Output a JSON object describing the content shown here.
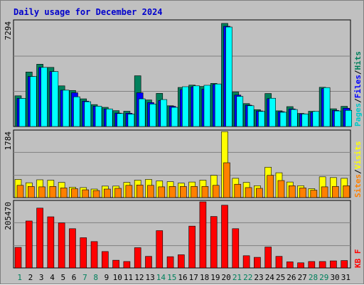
{
  "chart_data": {
    "type": "bar",
    "title": "Daily usage for December 2024",
    "categories": [
      "1",
      "2",
      "3",
      "4",
      "5",
      "6",
      "7",
      "8",
      "9",
      "10",
      "11",
      "12",
      "13",
      "14",
      "15",
      "16",
      "17",
      "18",
      "19",
      "20",
      "21",
      "22",
      "23",
      "24",
      "25",
      "26",
      "27",
      "28",
      "29",
      "30",
      "31"
    ],
    "weekend_days": [
      "1",
      "7",
      "8",
      "14",
      "15",
      "21",
      "22",
      "28",
      "29"
    ],
    "colors": {
      "hits": "#00805c",
      "files": "#0000ff",
      "pages": "#00ffff",
      "visits": "#ffff00",
      "sites": "#ff8000",
      "kbf": "#ff0000",
      "weekday": "#000000",
      "weekend": "#00805c",
      "title": "#0000cc",
      "grid": "#808080",
      "panel_bg": "#c0c0c0"
    },
    "panels": [
      {
        "ymax_label": "7294",
        "ymax": 7294,
        "legend": [
          {
            "text": "Pages",
            "color": "#00c8c8"
          },
          {
            "text": "/",
            "color": "#000000"
          },
          {
            "text": "Files",
            "color": "#0000ff"
          },
          {
            "text": "/",
            "color": "#000000"
          },
          {
            "text": "Hits",
            "color": "#00805c"
          }
        ],
        "series": [
          {
            "name": "Hits",
            "color": "#00805c",
            "values": [
              2130,
              3780,
              4320,
              4100,
              2820,
              2500,
              1920,
              1520,
              1330,
              1100,
              1060,
              3520,
              1840,
              2300,
              1440,
              2710,
              2870,
              2780,
              2990,
              7150,
              2390,
              1590,
              1170,
              2290,
              1090,
              1380,
              910,
              1060,
              2720,
              1230,
              1400
            ]
          },
          {
            "name": "Files",
            "color": "#0000ff",
            "values": [
              1950,
              3470,
              4100,
              3810,
              2520,
              2340,
              1760,
              1410,
              1220,
              930,
              920,
              2340,
              1660,
              1800,
              1400,
              2560,
              2750,
              2590,
              2920,
              6950,
              2180,
              1480,
              1080,
              1930,
              1030,
              1220,
              880,
              980,
              2630,
              1120,
              1270
            ]
          },
          {
            "name": "Pages",
            "color": "#00ffff",
            "values": [
              1950,
              3470,
              4100,
              3810,
              2520,
              2060,
              1720,
              1410,
              1220,
              900,
              860,
              1920,
              1560,
              1870,
              1330,
              2760,
              2820,
              2860,
              2950,
              6900,
              2090,
              1440,
              1050,
              1960,
              990,
              1180,
              870,
              1050,
              2700,
              1080,
              1120
            ]
          }
        ]
      },
      {
        "ymax_label": "1784",
        "ymax": 1784,
        "legend": [
          {
            "text": "Sites",
            "color": "#ff8000"
          },
          {
            "text": "/",
            "color": "#000000"
          },
          {
            "text": "Visits",
            "color": "#ffff00"
          }
        ],
        "series": [
          {
            "name": "Visits",
            "color": "#ffff00",
            "values": [
              490,
              400,
              480,
              470,
              410,
              280,
              270,
              230,
              310,
              310,
              410,
              470,
              490,
              450,
              430,
              390,
              420,
              470,
              600,
              1780,
              520,
              410,
              320,
              820,
              670,
              420,
              320,
              240,
              560,
              540,
              520
            ]
          },
          {
            "name": "Sites",
            "color": "#ff8000",
            "values": [
              330,
              300,
              290,
              300,
              260,
              240,
              210,
              190,
              230,
              250,
              330,
              340,
              330,
              290,
              300,
              300,
              300,
              300,
              330,
              940,
              360,
              270,
              250,
              600,
              460,
              320,
              260,
              200,
              290,
              300,
              320
            ]
          }
        ]
      },
      {
        "ymax_label": "205470",
        "ymax": 205470,
        "legend": [
          {
            "text": "KB F",
            "color": "#ff0000"
          }
        ],
        "series": [
          {
            "name": "KB F",
            "color": "#ff0000",
            "values": [
              64000,
              146000,
              186000,
              159000,
              140000,
              122000,
              94000,
              82000,
              51000,
              24000,
              20000,
              63000,
              36000,
              116000,
              35000,
              41000,
              130000,
              205470,
              160000,
              195000,
              122000,
              38000,
              33000,
              65000,
              36000,
              19000,
              16000,
              20000,
              20000,
              22000,
              23000
            ]
          }
        ]
      }
    ]
  }
}
